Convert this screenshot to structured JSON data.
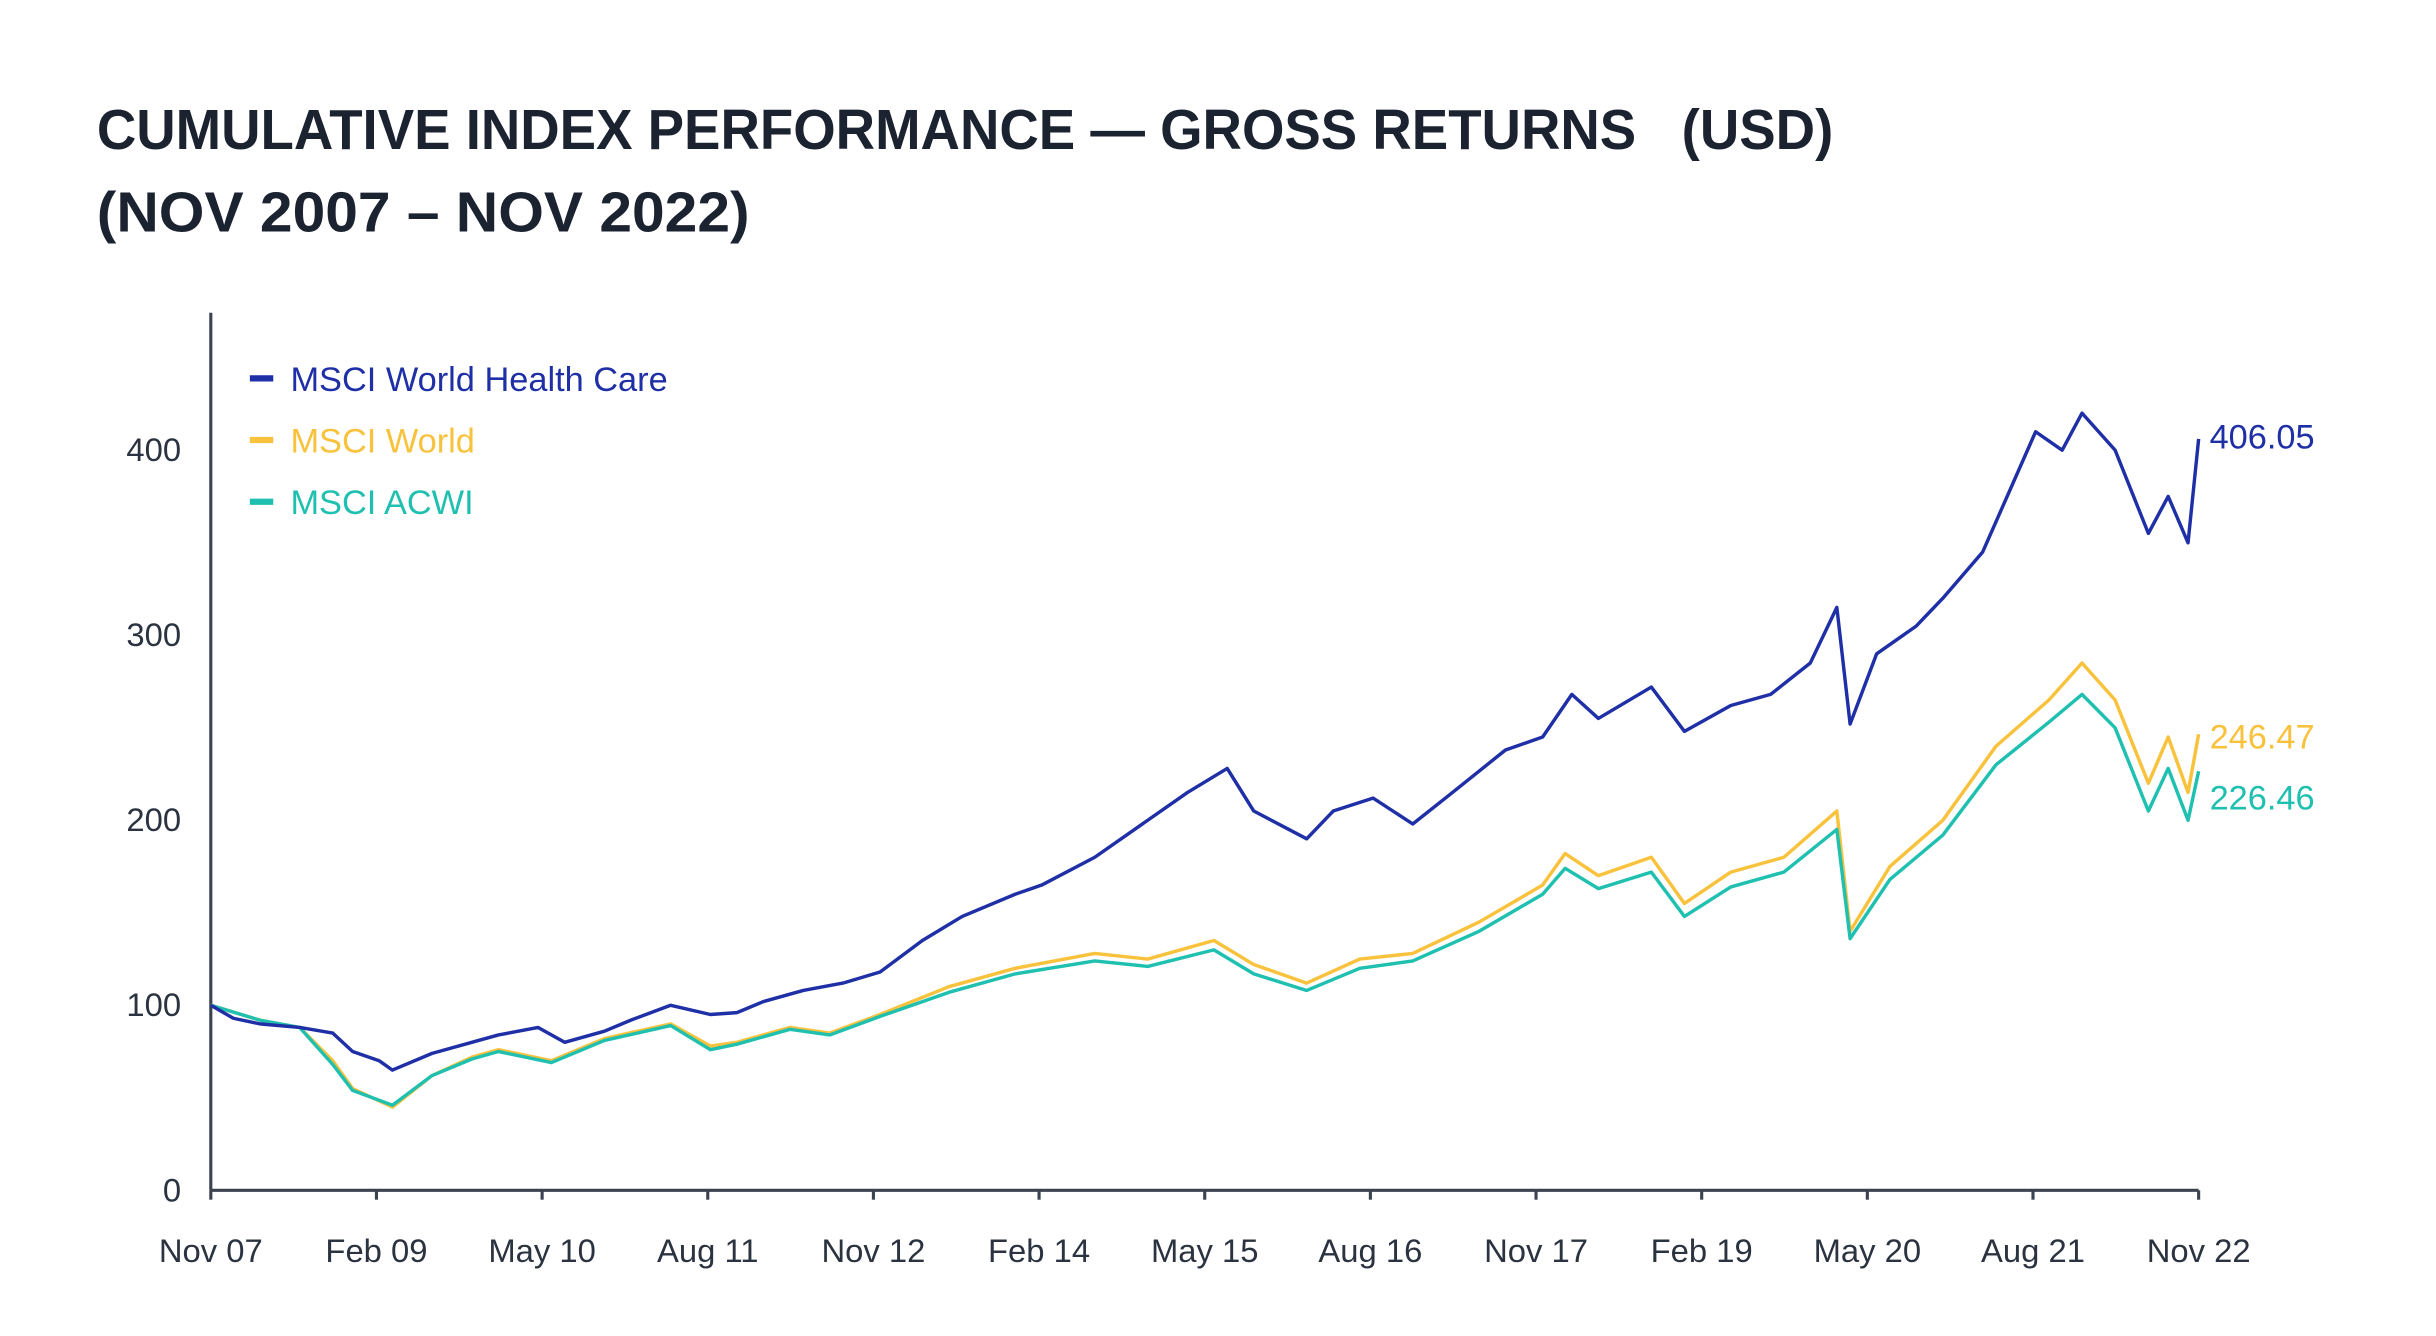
{
  "chart_data": {
    "type": "line",
    "title": [
      "CUMULATIVE INDEX PERFORMANCE — GROSS RETURNS   (USD)",
      "(NOV 2007 – NOV 2022)"
    ],
    "xlabel": "",
    "ylabel": "",
    "xlim": [
      2007.83,
      2022.88
    ],
    "ylim": [
      0,
      470
    ],
    "y_ticks": [
      0,
      100,
      200,
      300,
      400
    ],
    "x_ticks": [
      {
        "label": "Nov 07",
        "x": 2007.83
      },
      {
        "label": "Feb 09",
        "x": 2009.08
      },
      {
        "label": "May 10",
        "x": 2010.33
      },
      {
        "label": "Aug 11",
        "x": 2011.58
      },
      {
        "label": "Nov 12",
        "x": 2012.83
      },
      {
        "label": "Feb 14",
        "x": 2014.08
      },
      {
        "label": "May 15",
        "x": 2015.33
      },
      {
        "label": "Aug 16",
        "x": 2016.58
      },
      {
        "label": "Nov 17",
        "x": 2017.83
      },
      {
        "label": "Feb 19",
        "x": 2019.08
      },
      {
        "label": "May 20",
        "x": 2020.33
      },
      {
        "label": "Aug 21",
        "x": 2021.58
      },
      {
        "label": "Nov 22",
        "x": 2022.83
      }
    ],
    "grid": false,
    "legend_position": "top-left",
    "series": [
      {
        "name": "MSCI World Health Care",
        "color": "#1f2fa6",
        "end_label": "406.05",
        "x": [
          2007.83,
          2008.0,
          2008.2,
          2008.5,
          2008.75,
          2008.9,
          2009.1,
          2009.2,
          2009.5,
          2009.8,
          2010.0,
          2010.3,
          2010.5,
          2010.8,
          2011.0,
          2011.3,
          2011.6,
          2011.8,
          2012.0,
          2012.3,
          2012.6,
          2012.88,
          2013.2,
          2013.5,
          2013.9,
          2014.1,
          2014.5,
          2014.9,
          2015.2,
          2015.5,
          2015.7,
          2016.1,
          2016.3,
          2016.6,
          2016.9,
          2017.2,
          2017.6,
          2017.88,
          2018.1,
          2018.3,
          2018.7,
          2018.95,
          2019.3,
          2019.6,
          2019.9,
          2020.1,
          2020.2,
          2020.4,
          2020.7,
          2020.9,
          2021.2,
          2021.6,
          2021.8,
          2021.95,
          2022.2,
          2022.45,
          2022.6,
          2022.75,
          2022.83
        ],
        "values": [
          100,
          93,
          90,
          88,
          85,
          75,
          70,
          65,
          74,
          80,
          84,
          88,
          80,
          86,
          92,
          100,
          95,
          96,
          102,
          108,
          112,
          118,
          135,
          148,
          160,
          165,
          180,
          200,
          215,
          228,
          205,
          190,
          205,
          212,
          198,
          215,
          238,
          245,
          268,
          255,
          272,
          248,
          262,
          268,
          285,
          315,
          252,
          290,
          305,
          320,
          345,
          410,
          400,
          420,
          400,
          355,
          375,
          350,
          406.05
        ]
      },
      {
        "name": "MSCI World",
        "color": "#f9c23c",
        "end_label": "246.47",
        "x": [
          2007.83,
          2008.2,
          2008.5,
          2008.75,
          2008.9,
          2009.2,
          2009.5,
          2009.8,
          2010.0,
          2010.4,
          2010.8,
          2011.3,
          2011.6,
          2011.8,
          2012.2,
          2012.5,
          2012.88,
          2013.4,
          2013.9,
          2014.5,
          2014.9,
          2015.4,
          2015.7,
          2016.1,
          2016.5,
          2016.9,
          2017.4,
          2017.88,
          2018.05,
          2018.3,
          2018.7,
          2018.95,
          2019.3,
          2019.7,
          2020.1,
          2020.2,
          2020.5,
          2020.9,
          2021.3,
          2021.7,
          2021.95,
          2022.2,
          2022.45,
          2022.6,
          2022.75,
          2022.83
        ],
        "values": [
          100,
          92,
          88,
          70,
          55,
          45,
          62,
          72,
          76,
          70,
          82,
          90,
          78,
          80,
          88,
          85,
          95,
          110,
          120,
          128,
          125,
          135,
          122,
          112,
          125,
          128,
          145,
          165,
          182,
          170,
          180,
          155,
          172,
          180,
          205,
          140,
          175,
          200,
          240,
          265,
          285,
          265,
          220,
          245,
          215,
          246.47
        ]
      },
      {
        "name": "MSCI ACWI",
        "color": "#20c0b0",
        "end_label": "226.46",
        "x": [
          2007.83,
          2008.2,
          2008.5,
          2008.75,
          2008.9,
          2009.2,
          2009.5,
          2009.8,
          2010.0,
          2010.4,
          2010.8,
          2011.3,
          2011.6,
          2011.8,
          2012.2,
          2012.5,
          2012.88,
          2013.4,
          2013.9,
          2014.5,
          2014.9,
          2015.4,
          2015.7,
          2016.1,
          2016.5,
          2016.9,
          2017.4,
          2017.88,
          2018.05,
          2018.3,
          2018.7,
          2018.95,
          2019.3,
          2019.7,
          2020.1,
          2020.2,
          2020.5,
          2020.9,
          2021.3,
          2021.7,
          2021.95,
          2022.2,
          2022.45,
          2022.6,
          2022.75,
          2022.83
        ],
        "values": [
          100,
          92,
          88,
          68,
          54,
          46,
          62,
          71,
          75,
          69,
          81,
          89,
          76,
          79,
          87,
          84,
          94,
          107,
          117,
          124,
          121,
          130,
          117,
          108,
          120,
          124,
          140,
          160,
          174,
          163,
          172,
          148,
          164,
          172,
          195,
          136,
          168,
          192,
          230,
          253,
          268,
          250,
          205,
          228,
          200,
          226.46
        ]
      }
    ]
  }
}
